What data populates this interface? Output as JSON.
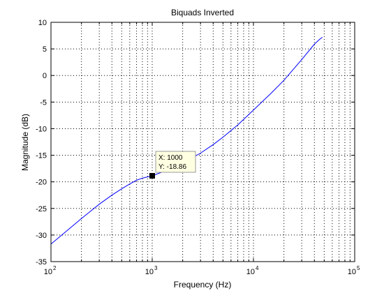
{
  "chart_data": {
    "type": "line",
    "title": "Biquads Inverted",
    "xlabel": "Frequency (Hz)",
    "ylabel": "Magnitude (dB)",
    "xscale": "log",
    "xlim": [
      100,
      100000
    ],
    "ylim": [
      -35,
      10
    ],
    "grid": true,
    "x_ticks": [
      {
        "value": 100,
        "mantissa": "10",
        "exp": "2"
      },
      {
        "value": 1000,
        "mantissa": "10",
        "exp": "3"
      },
      {
        "value": 10000,
        "mantissa": "10",
        "exp": "4"
      },
      {
        "value": 100000,
        "mantissa": "10",
        "exp": "5"
      }
    ],
    "y_ticks": [
      10,
      5,
      0,
      -5,
      -10,
      -15,
      -20,
      -25,
      -30,
      -35
    ],
    "y_tick_labels": [
      "10",
      "5",
      "0",
      "-5",
      "-10",
      "-15",
      "-20",
      "-25",
      "-30",
      "-35"
    ],
    "series": [
      {
        "color": "#0000ff",
        "x": [
          100,
          150,
          200,
          300,
          400,
          500,
          600,
          700,
          800,
          1000,
          1500,
          2000,
          3000,
          4000,
          5000,
          7000,
          10000,
          15000,
          20000,
          30000,
          40000,
          45000,
          48000
        ],
        "y": [
          -31.7,
          -28.9,
          -26.9,
          -24.2,
          -22.5,
          -21.3,
          -20.4,
          -19.7,
          -19.3,
          -18.86,
          -17.6,
          -16.5,
          -14.6,
          -13.0,
          -11.6,
          -9.3,
          -6.5,
          -3.3,
          -0.9,
          3.0,
          5.9,
          6.8,
          7.2
        ]
      }
    ],
    "annotations": [
      {
        "x": 1000,
        "y": -18.86,
        "line1": "X: 1000",
        "line2": "Y: -18.86"
      }
    ]
  }
}
